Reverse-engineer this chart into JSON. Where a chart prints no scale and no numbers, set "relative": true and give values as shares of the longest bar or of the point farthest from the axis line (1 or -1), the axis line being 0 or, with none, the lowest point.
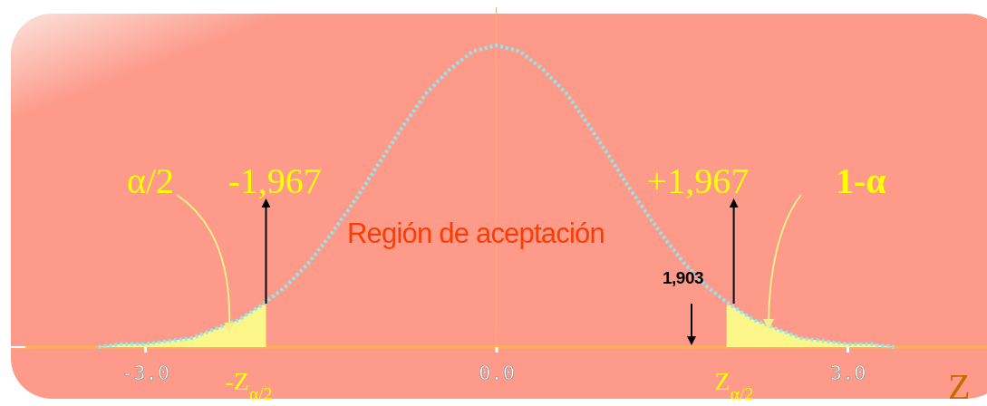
{
  "chart_data": {
    "type": "line",
    "relative": true,
    "xlabel": "Z",
    "x": [
      -3.4,
      -3.2,
      -3.0,
      -2.8,
      -2.6,
      -2.4,
      -2.2,
      -2.0,
      -1.8,
      -1.6,
      -1.4,
      -1.2,
      -1.0,
      -0.8,
      -0.6,
      -0.4,
      -0.2,
      0,
      0.2,
      0.4,
      0.6,
      0.8,
      1.0,
      1.2,
      1.4,
      1.6,
      1.8,
      2.0,
      2.2,
      2.4,
      2.6,
      2.8,
      3.0,
      3.2,
      3.4
    ],
    "series": [
      {
        "type": "area",
        "color": "#fdf78a",
        "x": [
          -3.4,
          -3.2,
          -3.0,
          -2.8,
          -2.6,
          -2.4,
          -2.2,
          -2.0,
          -1.967
        ],
        "values": [
          0.0,
          0.01,
          0.01,
          0.02,
          0.03,
          0.06,
          0.09,
          0.14,
          0.14
        ]
      },
      {
        "type": "area",
        "color": "#fdf78a",
        "x": [
          1.967,
          2.0,
          2.2,
          2.4,
          2.6,
          2.8,
          3.0,
          3.2,
          3.4
        ],
        "values": [
          0.14,
          0.14,
          0.09,
          0.06,
          0.03,
          0.02,
          0.01,
          0.01,
          0.0
        ]
      },
      {
        "color": "#8fe8f0",
        "values": [
          0.0,
          0.01,
          0.01,
          0.02,
          0.03,
          0.06,
          0.09,
          0.14,
          0.2,
          0.28,
          0.38,
          0.49,
          0.61,
          0.73,
          0.84,
          0.92,
          0.98,
          1,
          0.98,
          0.92,
          0.84,
          0.73,
          0.61,
          0.49,
          0.38,
          0.28,
          0.2,
          0.14,
          0.09,
          0.06,
          0.03,
          0.02,
          0.01,
          0.01,
          0.0
        ]
      }
    ],
    "line_style": "dotted",
    "marker": "none",
    "xlim": [
      -4.1,
      4.2
    ],
    "xticks": [
      {
        "value": -3,
        "label": "-3.0"
      },
      {
        "value": 0,
        "label": "0.0"
      },
      {
        "value": 3,
        "label": "3.0"
      }
    ],
    "ref_lines": [
      {
        "axis": "x",
        "value": 0,
        "color": "#ffb347"
      }
    ],
    "annotations": [
      "α/2",
      "-1,967",
      "+1,967",
      "1-α",
      "Región de aceptación",
      "1,903",
      "-Z$_{α/2}$",
      "Z$_{α/2}$"
    ]
  }
}
